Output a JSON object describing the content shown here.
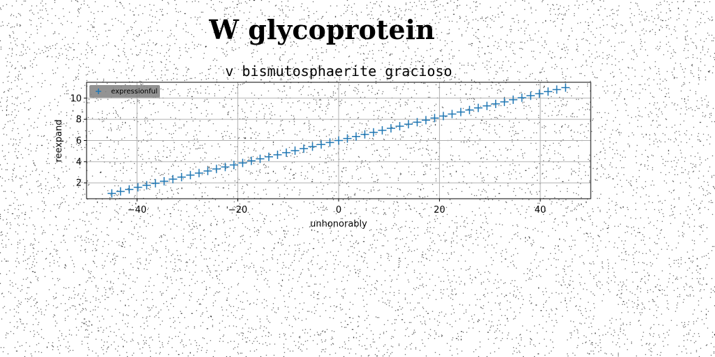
{
  "page": {
    "title": "W glycoprotein"
  },
  "colors": {
    "series": "#1f77b4",
    "grid": "#b0b0b0",
    "legend_bg": "#808080",
    "noise": "#000000"
  },
  "chart_data": {
    "type": "scatter",
    "title": "v bismutosphaerite gracioso",
    "xlabel": "unhonorably",
    "ylabel": "reexpand",
    "xlim": [
      -50,
      50
    ],
    "ylim": [
      0.5,
      11.5
    ],
    "xticks": [
      -40,
      -20,
      0,
      20,
      40
    ],
    "xtick_labels": [
      "−40",
      "−20",
      "0",
      "20",
      "40"
    ],
    "yticks": [
      2,
      4,
      6,
      8,
      10
    ],
    "ytick_labels": [
      "2",
      "4",
      "6",
      "8",
      "10"
    ],
    "grid": true,
    "legend_position": "top-left",
    "marker": "plus",
    "series": [
      {
        "name": "expressionful",
        "x": [
          -45.0,
          -43.27,
          -41.54,
          -39.81,
          -38.08,
          -36.35,
          -34.62,
          -32.88,
          -31.15,
          -29.42,
          -27.69,
          -25.96,
          -24.23,
          -22.5,
          -20.77,
          -19.04,
          -17.31,
          -15.58,
          -13.85,
          -12.12,
          -10.38,
          -8.65,
          -6.92,
          -5.19,
          -3.46,
          -1.73,
          0.0,
          1.73,
          3.46,
          5.19,
          6.92,
          8.65,
          10.38,
          12.12,
          13.85,
          15.58,
          17.31,
          19.04,
          20.77,
          22.5,
          24.23,
          25.96,
          27.69,
          29.42,
          31.15,
          32.88,
          34.62,
          36.35,
          38.08,
          39.81,
          41.54,
          43.27,
          45.0
        ],
        "y": [
          1.0,
          1.19,
          1.38,
          1.58,
          1.77,
          1.96,
          2.15,
          2.35,
          2.54,
          2.73,
          2.92,
          3.12,
          3.31,
          3.5,
          3.69,
          3.88,
          4.08,
          4.27,
          4.46,
          4.65,
          4.85,
          5.04,
          5.23,
          5.42,
          5.62,
          5.81,
          6.0,
          6.19,
          6.38,
          6.58,
          6.77,
          6.96,
          7.15,
          7.35,
          7.54,
          7.73,
          7.92,
          8.12,
          8.31,
          8.5,
          8.69,
          8.88,
          9.08,
          9.27,
          9.46,
          9.65,
          9.85,
          10.04,
          10.23,
          10.42,
          10.62,
          10.81,
          11.0
        ]
      }
    ]
  }
}
